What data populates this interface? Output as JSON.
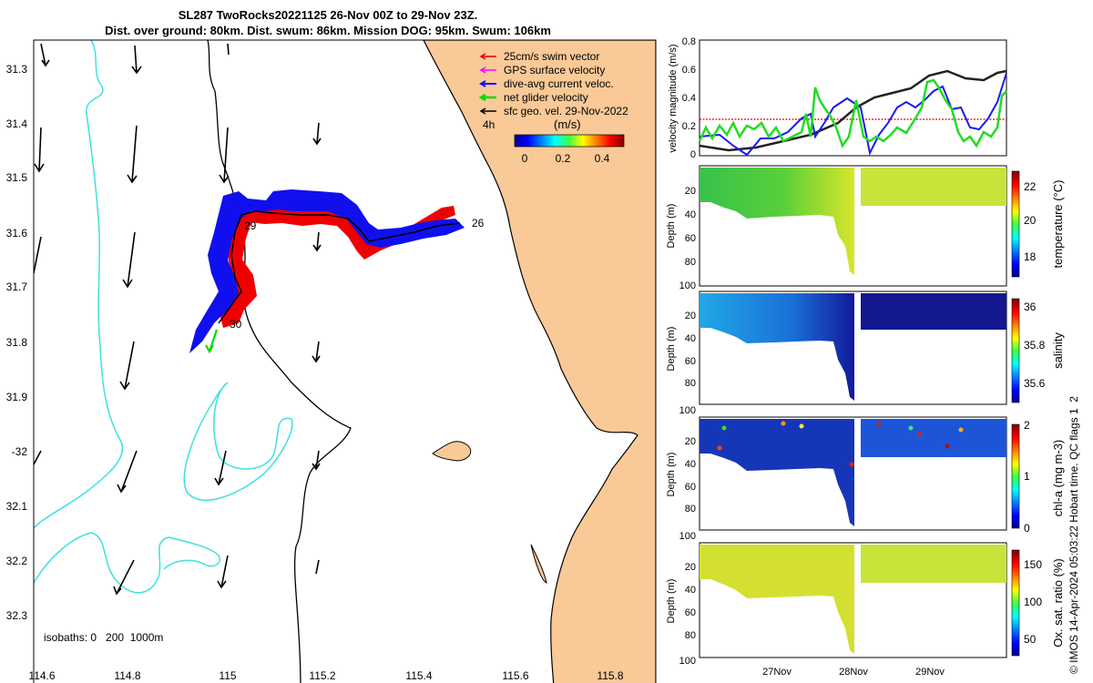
{
  "title": {
    "line1": "SL287 TwoRocks20221125 26-Nov 00Z to 29-Nov 23Z.",
    "line2": "Dist. over ground: 80km. Dist. swum: 86km. Mission DOG: 95km. Swum: 106km"
  },
  "map": {
    "lon_ticks": [
      "114.6",
      "114.8",
      "115",
      "115.2",
      "115.4",
      "115.6",
      "115.8"
    ],
    "lat_ticks": [
      "31.3",
      "31.4",
      "31.5",
      "31.6",
      "31.7",
      "31.8",
      "31.9",
      "-32",
      "32.1",
      "32.2",
      "32.3"
    ],
    "legend": [
      {
        "label": "25cm/s swim vector",
        "color": "#e00000"
      },
      {
        "label": "GPS surface velocity",
        "color": "#ff00ff"
      },
      {
        "label": "dive-avg current veloc.",
        "color": "#1010ff"
      },
      {
        "label": "net glider velocity",
        "color": "#00dd00"
      },
      {
        "label": "sfc geo. vel. 29-Nov-2022",
        "color": "#000000"
      }
    ],
    "legend_time": "4h",
    "colorbar_unit": "(m/s)",
    "colorbar_ticks": [
      "0",
      "0.2",
      "0.4"
    ],
    "day_labels": [
      {
        "text": "26"
      },
      {
        "text": "29"
      },
      {
        "text": "30"
      }
    ],
    "isobaths_text": "isobaths: 0   200  1000m",
    "land_color": "#f9c997",
    "isobath_color": "#40e0e0"
  },
  "velocity_plot": {
    "ylabel": "velocity magnitude (m/s)",
    "ticks": [
      "0",
      "0.2",
      "0.4",
      "0.6",
      "0.8"
    ]
  },
  "profiles": [
    {
      "cbar_label": "temperature (°C)",
      "cbar_ticks": [
        "18",
        "20",
        "22"
      ]
    },
    {
      "cbar_label": "salinity",
      "cbar_ticks": [
        "35.6",
        "35.8",
        "36"
      ]
    },
    {
      "cbar_label": "chl-a (mg m-3)",
      "cbar_ticks": [
        "0",
        "1",
        "2"
      ]
    },
    {
      "cbar_label": "Ox. sat. ratio (%)",
      "cbar_ticks": [
        "50",
        "100",
        "150"
      ]
    }
  ],
  "depth_label": "Depth (m)",
  "depth_ticks": [
    "20",
    "40",
    "60",
    "80",
    "100"
  ],
  "time_ticks": [
    "27Nov",
    "28Nov",
    "29Nov"
  ],
  "footer": "© IMOS 14-Apr-2024 05:03:22 Hobart time. QC flags 1  2"
}
